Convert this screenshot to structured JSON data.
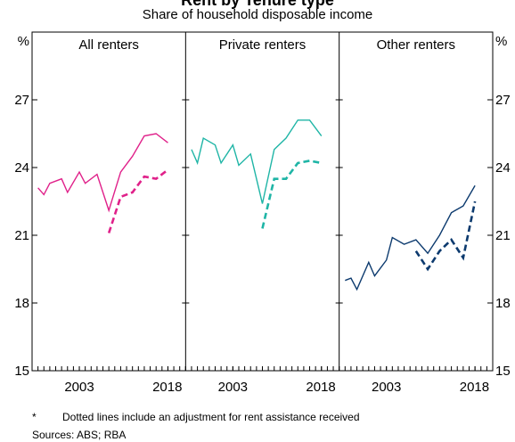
{
  "title": "Rent by Tenure type",
  "subtitle": "Share of household disposable income",
  "notes": [
    {
      "marker": "*",
      "text": "Dotted lines include an adjustment for rent assistance received"
    },
    {
      "text": "Sources: ABS; RBA"
    }
  ],
  "chart_data": [
    {
      "type": "line",
      "title": "All renters",
      "ylabel": "%",
      "x": [
        1996,
        1997,
        1998,
        2000,
        2001,
        2003,
        2004,
        2006,
        2008,
        2010,
        2012,
        2014,
        2016,
        2018
      ],
      "series": [
        {
          "color": "#e0218a",
          "dashed": false,
          "values": [
            23.1,
            22.8,
            23.3,
            23.5,
            22.9,
            23.8,
            23.3,
            23.7,
            22.1,
            23.8,
            24.5,
            25.4,
            25.5,
            25.1
          ]
        },
        {
          "color": "#e0218a",
          "dashed": true,
          "values": [
            null,
            null,
            null,
            null,
            null,
            null,
            null,
            null,
            21.1,
            22.7,
            22.9,
            23.6,
            23.5,
            23.9
          ]
        }
      ],
      "xlim": [
        1995,
        2021
      ],
      "xticks": [
        2003,
        2018
      ],
      "ylim": [
        15,
        30
      ],
      "yticks": [
        15,
        18,
        21,
        24,
        27
      ]
    },
    {
      "type": "line",
      "title": "Private renters",
      "x": [
        1996,
        1997,
        1998,
        2000,
        2001,
        2003,
        2004,
        2006,
        2008,
        2010,
        2012,
        2014,
        2016,
        2018
      ],
      "series": [
        {
          "color": "#1fb5a6",
          "dashed": false,
          "values": [
            24.8,
            24.2,
            25.3,
            25.0,
            24.2,
            25.0,
            24.1,
            24.6,
            22.4,
            24.8,
            25.3,
            26.1,
            26.1,
            25.4
          ]
        },
        {
          "color": "#1fb5a6",
          "dashed": true,
          "values": [
            null,
            null,
            null,
            null,
            null,
            null,
            null,
            null,
            21.3,
            23.5,
            23.5,
            24.2,
            24.3,
            24.2
          ]
        }
      ],
      "xlim": [
        1995,
        2021
      ],
      "xticks": [
        2003,
        2018
      ],
      "ylim": [
        15,
        30
      ],
      "yticks": [
        15,
        18,
        21,
        24,
        27
      ]
    },
    {
      "type": "line",
      "title": "Other renters",
      "ylabel": "%",
      "x": [
        1996,
        1997,
        1998,
        2000,
        2001,
        2003,
        2004,
        2006,
        2008,
        2010,
        2012,
        2014,
        2016,
        2018
      ],
      "series": [
        {
          "color": "#0c3a6e",
          "dashed": false,
          "values": [
            19.0,
            19.1,
            18.6,
            19.8,
            19.2,
            19.9,
            20.9,
            20.6,
            20.8,
            20.2,
            21.0,
            22.0,
            22.3,
            23.2
          ]
        },
        {
          "color": "#0c3a6e",
          "dashed": true,
          "values": [
            null,
            null,
            null,
            null,
            null,
            null,
            null,
            null,
            20.3,
            19.5,
            20.3,
            20.8,
            20.0,
            22.5
          ]
        }
      ],
      "xlim": [
        1995,
        2021
      ],
      "xticks": [
        2003,
        2018
      ],
      "ylim": [
        15,
        30
      ],
      "yticks": [
        15,
        18,
        21,
        24,
        27
      ]
    }
  ]
}
